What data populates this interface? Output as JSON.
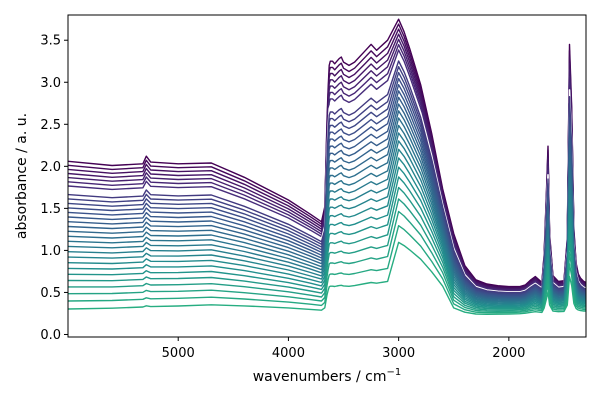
{
  "chart_data": {
    "type": "line",
    "xlabel": "wavenumbers / cm",
    "xlabel_superscript": "−1",
    "ylabel": "absorbance / a. u.",
    "xlim": [
      6000,
      1300
    ],
    "ylim": [
      -0.03,
      3.8
    ],
    "x_reversed": true,
    "grid": false,
    "legend": "none",
    "x_ticks": [
      {
        "value": 5000,
        "label": "5000"
      },
      {
        "value": 4000,
        "label": "4000"
      },
      {
        "value": 3000,
        "label": "3000"
      },
      {
        "value": 2000,
        "label": "2000"
      }
    ],
    "y_ticks": [
      {
        "value": 0.0,
        "label": "0.0"
      },
      {
        "value": 0.5,
        "label": "0.5"
      },
      {
        "value": 1.0,
        "label": "1.0"
      },
      {
        "value": 1.5,
        "label": "1.5"
      },
      {
        "value": 2.0,
        "label": "2.0"
      },
      {
        "value": 2.5,
        "label": "2.5"
      },
      {
        "value": 3.0,
        "label": "3.0"
      },
      {
        "value": 3.5,
        "label": "3.5"
      }
    ],
    "colormap": [
      "#440154",
      "#472c7a",
      "#3b518b",
      "#2c718e",
      "#21908d",
      "#27ad81"
    ],
    "highlight_color": "#ffffff",
    "series_count": 30,
    "highlight_index": 7,
    "x": [
      6000,
      5600,
      5320,
      5290,
      5250,
      5000,
      4700,
      4400,
      4000,
      3800,
      3700,
      3670,
      3650,
      3640,
      3630,
      3620,
      3600,
      3580,
      3560,
      3540,
      3520,
      3500,
      3450,
      3400,
      3300,
      3250,
      3200,
      3100,
      3000,
      2950,
      2900,
      2800,
      2700,
      2600,
      2500,
      2400,
      2300,
      2200,
      2100,
      2000,
      1900,
      1850,
      1800,
      1760,
      1700,
      1680,
      1660,
      1645,
      1630,
      1600,
      1550,
      1500,
      1470,
      1450,
      1430,
      1410,
      1390,
      1370,
      1350,
      1320,
      1300
    ],
    "series": [
      {
        "values": [
          2.06,
          2.01,
          2.03,
          2.12,
          2.05,
          2.03,
          2.04,
          1.87,
          1.6,
          1.43,
          1.34,
          1.52,
          2.55,
          2.92,
          3.2,
          3.25,
          3.25,
          3.22,
          3.25,
          3.28,
          3.3,
          3.24,
          3.2,
          3.24,
          3.38,
          3.45,
          3.38,
          3.5,
          3.75,
          3.6,
          3.4,
          2.97,
          2.39,
          1.73,
          1.2,
          0.82,
          0.65,
          0.6,
          0.58,
          0.57,
          0.57,
          0.59,
          0.65,
          0.69,
          0.62,
          0.95,
          1.65,
          2.24,
          1.2,
          0.7,
          0.63,
          0.64,
          1.15,
          3.45,
          2.7,
          1.25,
          0.85,
          0.72,
          0.67,
          0.63,
          0.62
        ]
      }
    ]
  }
}
